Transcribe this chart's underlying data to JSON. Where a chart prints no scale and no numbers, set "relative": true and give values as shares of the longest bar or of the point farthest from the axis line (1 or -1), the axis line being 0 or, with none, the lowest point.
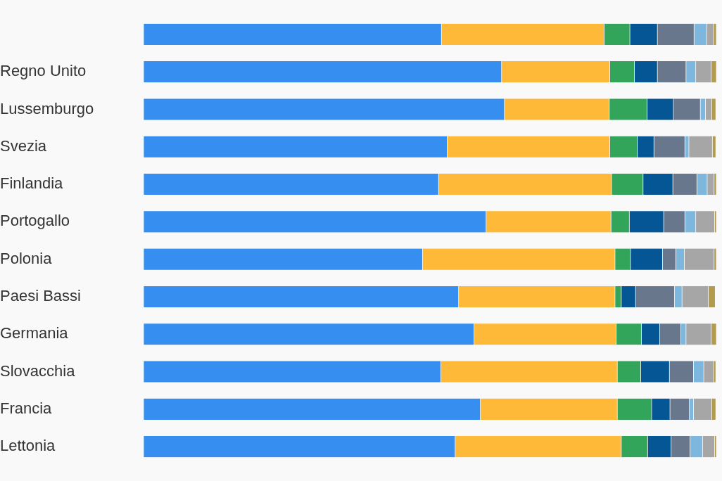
{
  "chart_data": {
    "type": "bar",
    "orientation": "horizontal",
    "stacked": true,
    "relative": true,
    "legend": false,
    "categories": [
      null,
      "Regno Unito",
      "Lussemburgo",
      "Svezia",
      "Finlandia",
      "Portogallo",
      "Polonia",
      "Paesi Bassi",
      "Germania",
      "Slovacchia",
      "Francia",
      "Lettonia"
    ],
    "series": [
      {
        "color": "#358ef0",
        "values": [
          0.52,
          0.625,
          0.63,
          0.53,
          0.515,
          0.598,
          0.487,
          0.55,
          0.577,
          0.519,
          0.588,
          0.544
        ]
      },
      {
        "color": "#ffb938",
        "values": [
          0.284,
          0.189,
          0.183,
          0.284,
          0.302,
          0.218,
          0.336,
          0.273,
          0.248,
          0.308,
          0.239,
          0.29
        ]
      },
      {
        "color": "#33a55b",
        "values": [
          0.045,
          0.043,
          0.066,
          0.048,
          0.055,
          0.032,
          0.027,
          0.011,
          0.044,
          0.041,
          0.06,
          0.046
        ]
      },
      {
        "color": "#045694",
        "values": [
          0.048,
          0.04,
          0.046,
          0.029,
          0.052,
          0.06,
          0.056,
          0.025,
          0.032,
          0.05,
          0.032,
          0.041
        ]
      },
      {
        "color": "#68778c",
        "values": [
          0.064,
          0.05,
          0.047,
          0.054,
          0.042,
          0.037,
          0.023,
          0.068,
          0.037,
          0.042,
          0.034,
          0.033
        ]
      },
      {
        "color": "#7db7de",
        "values": [
          0.022,
          0.017,
          0.009,
          0.007,
          0.018,
          0.019,
          0.015,
          0.013,
          0.009,
          0.018,
          0.007,
          0.022
        ]
      },
      {
        "color": "#a6a6a6",
        "values": [
          0.012,
          0.027,
          0.011,
          0.041,
          0.012,
          0.033,
          0.052,
          0.046,
          0.044,
          0.017,
          0.032,
          0.021
        ]
      },
      {
        "color": "#b39b4e",
        "values": [
          0.005,
          0.009,
          0.007,
          0.006,
          0.004,
          0.003,
          0.004,
          0.012,
          0.009,
          0.004,
          0.007,
          0.003
        ]
      }
    ]
  }
}
